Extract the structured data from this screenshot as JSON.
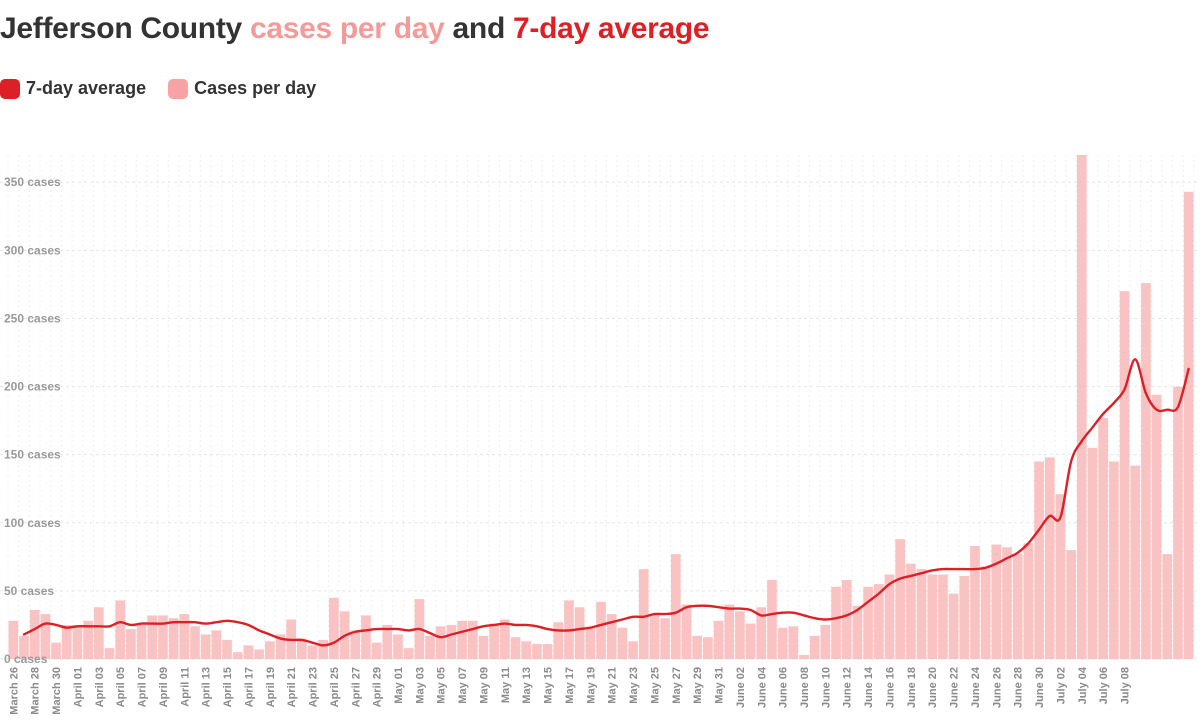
{
  "title": {
    "prefix": "Jefferson County ",
    "part_cases": "cases per day",
    "middle": " and ",
    "part_avg": "7-day average"
  },
  "legend": {
    "line_label": "7-day average",
    "bar_label": "Cases per day"
  },
  "colors": {
    "bar": "#f9b8b8",
    "line": "#dd1f26",
    "grid": "#e6e6e6"
  },
  "chart_data": {
    "type": "bar",
    "title": "Jefferson County cases per day and 7-day average",
    "y_unit_suffix": " cases",
    "y_ticks": [
      0,
      50,
      100,
      150,
      200,
      250,
      300,
      350
    ],
    "ylim": [
      0,
      370
    ],
    "start_date": "2020-03-26",
    "x_tick_labels": [
      "March 26",
      "March 28",
      "March 30",
      "April 01",
      "April 03",
      "April 05",
      "April 07",
      "April 09",
      "April 11",
      "April 13",
      "April 15",
      "April 17",
      "April 19",
      "April 21",
      "April 23",
      "April 25",
      "April 27",
      "April 29",
      "May 01",
      "May 03",
      "May 05",
      "May 07",
      "May 09",
      "May 11",
      "May 13",
      "May 15",
      "May 17",
      "May 19",
      "May 21",
      "May 23",
      "May 25",
      "May 27",
      "May 29",
      "May 31",
      "June 02",
      "June 04",
      "June 06",
      "June 08",
      "June 10",
      "June 12",
      "June 14",
      "June 16",
      "June 18",
      "June 20",
      "June 22",
      "June 24",
      "June 26",
      "June 28",
      "June 30",
      "July 02",
      "July 04",
      "July 06",
      "July 08"
    ],
    "series": [
      {
        "name": "Cases per day",
        "type": "bar",
        "values": [
          28,
          17,
          36,
          33,
          12,
          25,
          25,
          28,
          38,
          8,
          43,
          22,
          25,
          32,
          32,
          30,
          33,
          24,
          18,
          21,
          14,
          5,
          10,
          7,
          13,
          18,
          29,
          15,
          10,
          14,
          45,
          35,
          21,
          32,
          12,
          25,
          18,
          8,
          44,
          17,
          24,
          25,
          28,
          28,
          17,
          26,
          29,
          16,
          13,
          11,
          11,
          27,
          43,
          38,
          23,
          42,
          33,
          23,
          13,
          66,
          33,
          30,
          77,
          40,
          17,
          16,
          28,
          40,
          35,
          26,
          38,
          58,
          23,
          24,
          3,
          17,
          25,
          53,
          58,
          39,
          53,
          55,
          62,
          88,
          70,
          66,
          62,
          62,
          48,
          61,
          83,
          68,
          84,
          82,
          77,
          85,
          145,
          148,
          121,
          80,
          370,
          155,
          177,
          145,
          270,
          142,
          276,
          194,
          77,
          200,
          343
        ],
        "note": "estimated daily counts read from bar heights"
      },
      {
        "name": "7-day average",
        "type": "line",
        "values": [
          null,
          18,
          22,
          26,
          25,
          23,
          24,
          24,
          24,
          24,
          27,
          25,
          26,
          26,
          26,
          27,
          27,
          27,
          26,
          27,
          28,
          27,
          25,
          21,
          18,
          15,
          14,
          14,
          12,
          10,
          12,
          17,
          20,
          21,
          22,
          22,
          22,
          21,
          22,
          19,
          16,
          18,
          20,
          22,
          24,
          25,
          26,
          25,
          25,
          24,
          22,
          21,
          21,
          22,
          23,
          25,
          27,
          29,
          31,
          31,
          33,
          33,
          34,
          38,
          39,
          39,
          38,
          37,
          37,
          36,
          32,
          33,
          34,
          34,
          32,
          30,
          29,
          30,
          32,
          36,
          42,
          48,
          55,
          59,
          61,
          63,
          65,
          66,
          66,
          66,
          66,
          67,
          70,
          74,
          78,
          85,
          95,
          105,
          104,
          145,
          160,
          170,
          180,
          188,
          198,
          220,
          195,
          183,
          183,
          185,
          213
        ],
        "note": "estimated smoothed average"
      }
    ]
  }
}
